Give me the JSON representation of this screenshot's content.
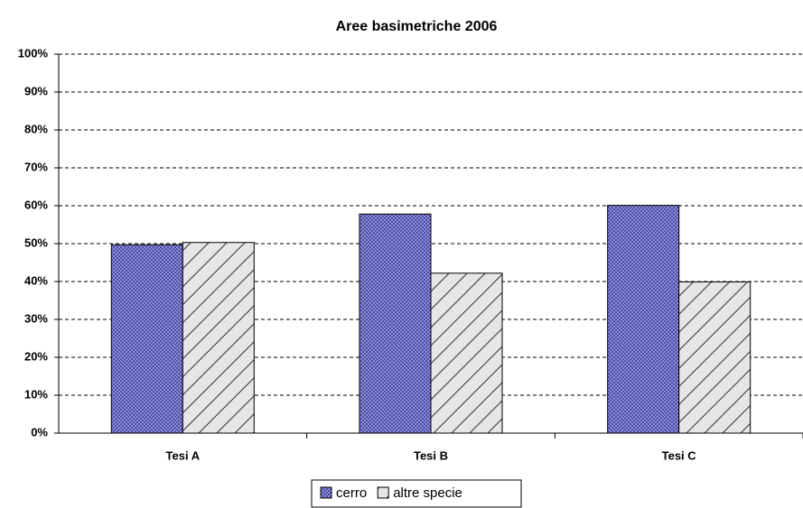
{
  "chart_data": {
    "type": "bar",
    "title": "Aree basimetriche 2006",
    "categories": [
      "Tesi A",
      "Tesi B",
      "Tesi C"
    ],
    "series": [
      {
        "name": "cerro",
        "color": "#9999ff",
        "hatch": "cross",
        "values": [
          49.7,
          57.8,
          60.1
        ]
      },
      {
        "name": "altre specie",
        "color": "#e6e6e6",
        "hatch": "diagonal",
        "values": [
          50.3,
          42.2,
          39.9
        ]
      }
    ],
    "ylim": [
      0,
      100
    ],
    "yticks": [
      {
        "value": 0,
        "label": "0%"
      },
      {
        "value": 10,
        "label": "10%"
      },
      {
        "value": 20,
        "label": "20%"
      },
      {
        "value": 30,
        "label": "30%"
      },
      {
        "value": 40,
        "label": "40%"
      },
      {
        "value": 50,
        "label": "50%"
      },
      {
        "value": 60,
        "label": "60%"
      },
      {
        "value": 70,
        "label": "70%"
      },
      {
        "value": 80,
        "label": "80%"
      },
      {
        "value": 90,
        "label": "90%"
      },
      {
        "value": 100,
        "label": "100%"
      }
    ],
    "grid": true,
    "legend": "bottom"
  }
}
